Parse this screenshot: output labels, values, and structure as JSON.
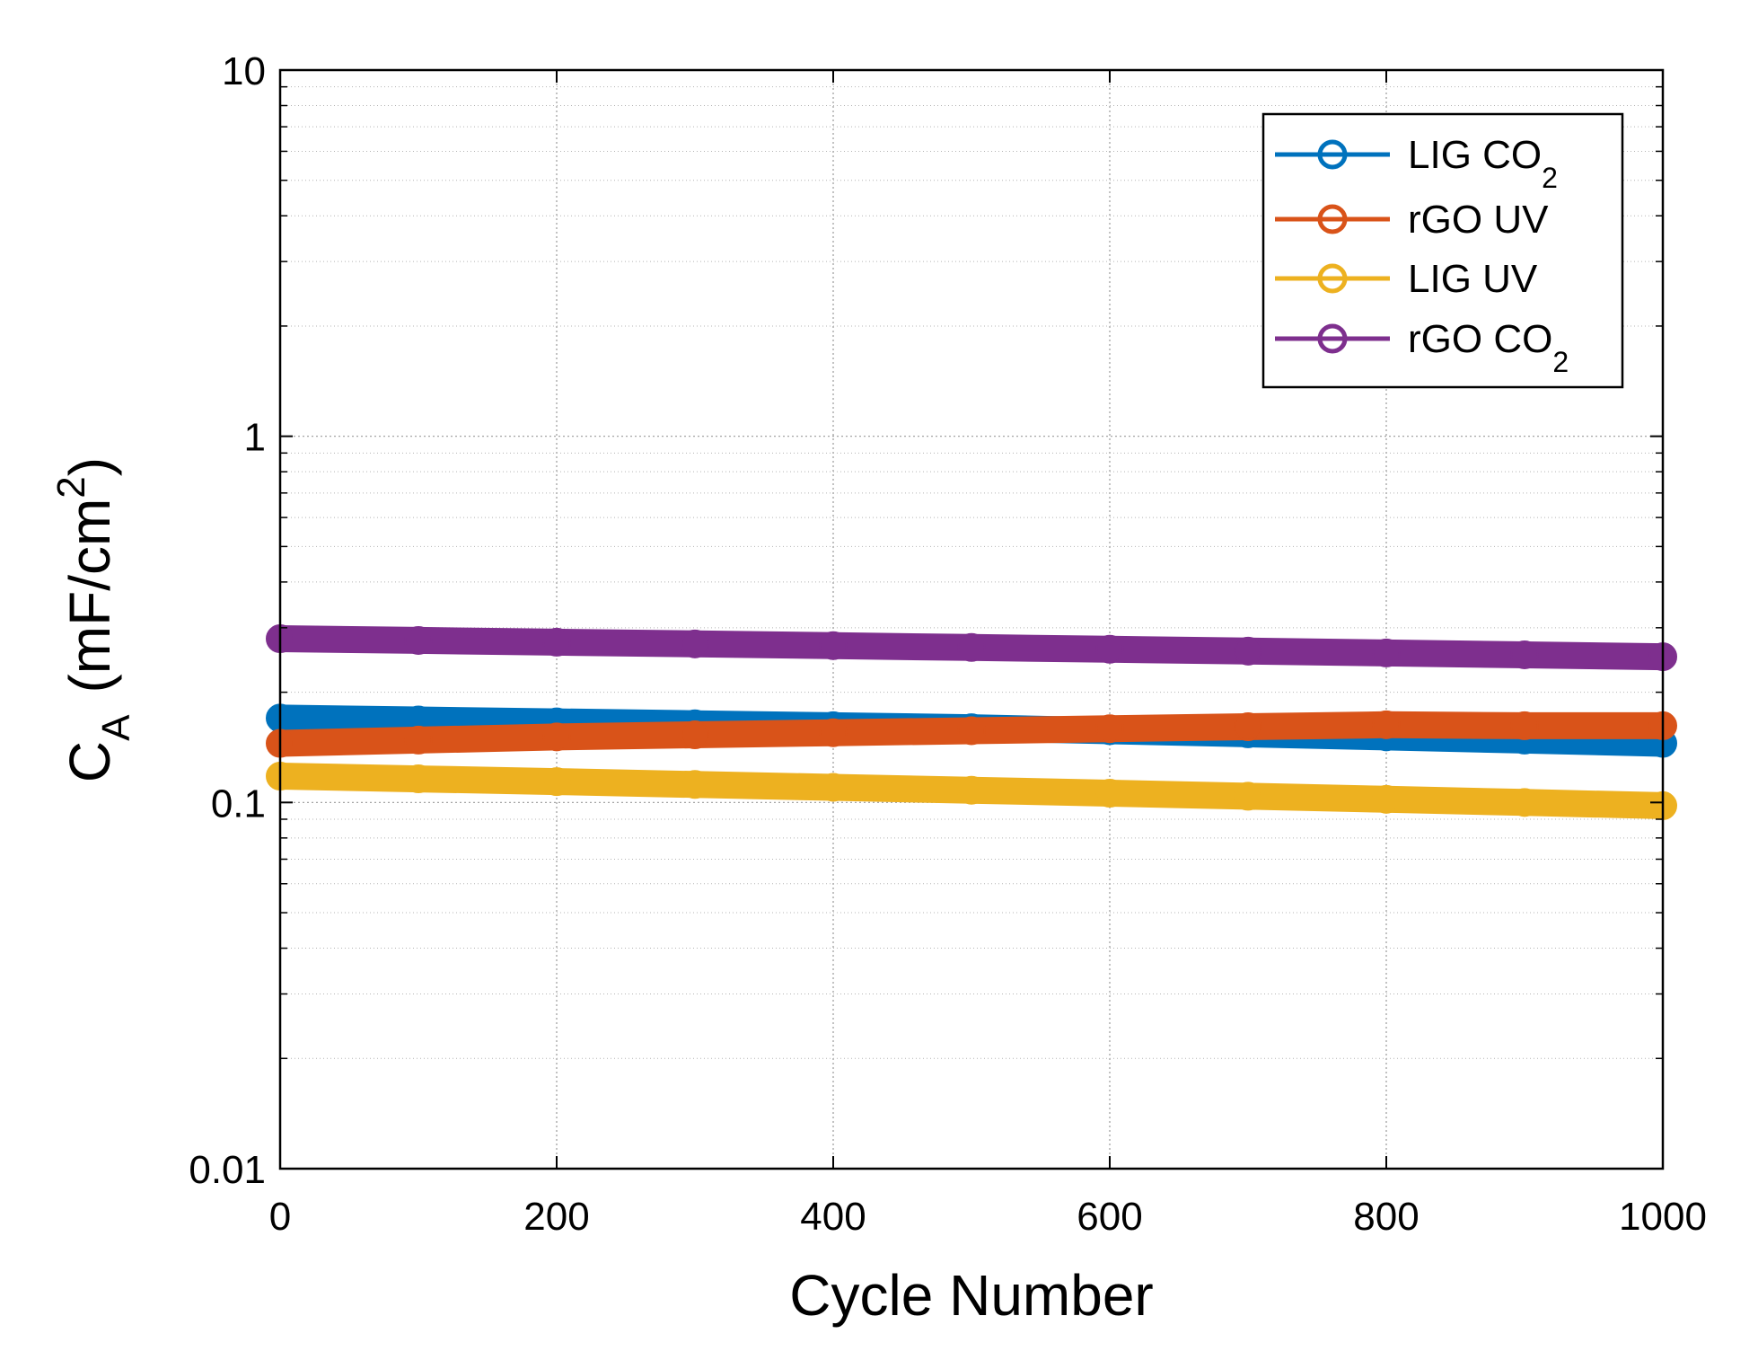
{
  "chart_data": {
    "type": "scatter",
    "xlabel": "Cycle Number",
    "ylabel": {
      "symbol": "C",
      "symbol_sub": "A",
      "unit_prefix": "(mF/cm",
      "unit_sup": "2",
      "unit_suffix": ")"
    },
    "x_ticks": [
      "0",
      "200",
      "400",
      "600",
      "800",
      "1000"
    ],
    "y_ticks": [
      "0.01",
      "0.1",
      "1",
      "10"
    ],
    "xlim": [
      0,
      1000
    ],
    "ylim": [
      0.01,
      10
    ],
    "y_scale": "log",
    "grid": true,
    "legend_position": "top-right",
    "series": [
      {
        "name": "LIG CO",
        "name_sub": "2",
        "color": "#0072BD",
        "x": [
          0,
          100,
          200,
          300,
          400,
          500,
          600,
          700,
          800,
          900,
          1000
        ],
        "y": [
          0.17,
          0.168,
          0.166,
          0.164,
          0.162,
          0.16,
          0.157,
          0.154,
          0.151,
          0.148,
          0.145
        ]
      },
      {
        "name": "rGO UV",
        "color": "#D95319",
        "x": [
          0,
          100,
          200,
          300,
          400,
          500,
          600,
          700,
          800,
          900,
          1000
        ],
        "y": [
          0.145,
          0.148,
          0.151,
          0.153,
          0.155,
          0.157,
          0.159,
          0.161,
          0.163,
          0.162,
          0.162
        ]
      },
      {
        "name": "LIG UV",
        "color": "#EDB120",
        "x": [
          0,
          100,
          200,
          300,
          400,
          500,
          600,
          700,
          800,
          900,
          1000
        ],
        "y": [
          0.118,
          0.116,
          0.114,
          0.112,
          0.11,
          0.108,
          0.106,
          0.104,
          0.102,
          0.1,
          0.098
        ]
      },
      {
        "name": "rGO CO",
        "name_sub": "2",
        "color": "#7E2F8E",
        "x": [
          0,
          100,
          200,
          300,
          400,
          500,
          600,
          700,
          800,
          900,
          1000
        ],
        "y": [
          0.28,
          0.277,
          0.274,
          0.271,
          0.268,
          0.265,
          0.262,
          0.259,
          0.256,
          0.253,
          0.25
        ]
      }
    ]
  }
}
